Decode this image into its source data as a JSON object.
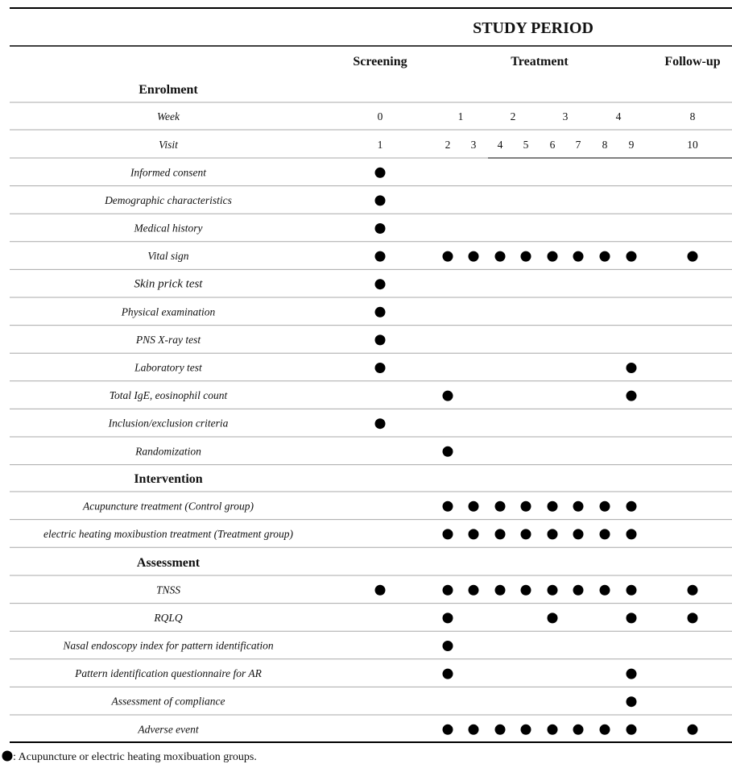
{
  "study_period_title": "STUDY PERIOD",
  "phases": [
    {
      "label": "Screening"
    },
    {
      "label": "Treatment"
    },
    {
      "label": "Follow-up"
    }
  ],
  "week_label": "Week",
  "visit_label": "Visit",
  "weeks": [
    "0",
    "1",
    "2",
    "3",
    "4",
    "8"
  ],
  "visits": [
    "1",
    "2",
    "3",
    "4",
    "5",
    "6",
    "7",
    "8",
    "9",
    "10"
  ],
  "sections": {
    "enrolment": "Enrolment",
    "intervention": "Intervention",
    "assessment": "Assessment"
  },
  "rows": [
    {
      "label": "Informed consent",
      "marks": [
        1
      ]
    },
    {
      "label": "Demographic characteristics",
      "marks": [
        1
      ]
    },
    {
      "label": "Medical history",
      "marks": [
        1
      ]
    },
    {
      "label": "Vital sign",
      "marks": [
        1,
        2,
        3,
        4,
        5,
        6,
        7,
        8,
        9,
        10
      ]
    },
    {
      "label": "Skin prick test",
      "marks": [
        1
      ]
    },
    {
      "label": "Physical examination",
      "marks": [
        1
      ]
    },
    {
      "label": "PNS X-ray test",
      "marks": [
        1
      ]
    },
    {
      "label": "Laboratory test",
      "marks": [
        1,
        9
      ]
    },
    {
      "label": "Total IgE, eosinophil count",
      "marks": [
        2,
        9
      ]
    },
    {
      "label": "Inclusion/exclusion criteria",
      "marks": [
        1
      ]
    },
    {
      "label": "Randomization",
      "marks": [
        2
      ]
    },
    {
      "label": "Acupuncture treatment (Control group)",
      "marks": [
        2,
        3,
        4,
        5,
        6,
        7,
        8,
        9
      ]
    },
    {
      "label": "electric heating moxibustion treatment (Treatment group)",
      "marks": [
        2,
        3,
        4,
        5,
        6,
        7,
        8,
        9
      ]
    },
    {
      "label": "TNSS",
      "marks": [
        1,
        2,
        3,
        4,
        5,
        6,
        7,
        8,
        9,
        10
      ]
    },
    {
      "label": "RQLQ",
      "marks": [
        2,
        6,
        9,
        10
      ]
    },
    {
      "label": "Nasal endoscopy index for pattern identification",
      "marks": [
        2
      ]
    },
    {
      "label": "Pattern identification questionnaire for AR",
      "marks": [
        2,
        9
      ]
    },
    {
      "label": "Assessment of compliance",
      "marks": [
        9
      ]
    },
    {
      "label": "Adverse event",
      "marks": [
        2,
        3,
        4,
        5,
        6,
        7,
        8,
        9,
        10
      ]
    }
  ],
  "footnote": ": Acupuncture or electric heating moxibuation groups."
}
